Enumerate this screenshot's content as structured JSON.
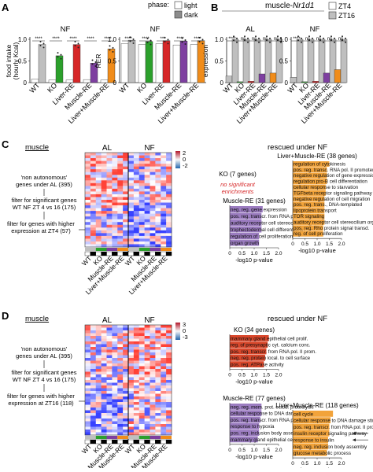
{
  "panels": {
    "A": {
      "letter": "A"
    },
    "B": {
      "letter": "B",
      "title_prefix": "muscle-",
      "title_gene": "Nr1d1"
    },
    "C": {
      "letter": "C"
    },
    "D": {
      "letter": "D"
    }
  },
  "phase_legend": {
    "title": "phase:",
    "light": "light",
    "dark": "dark"
  },
  "zt_legend": {
    "zt4": "ZT4",
    "zt16": "ZT16"
  },
  "groups": [
    "WT",
    "KO",
    "Liver-RE",
    "Muscle-RE",
    "Liver+Muscle-RE"
  ],
  "colors": {
    "WT": "#bfbfbf",
    "KO": "#2ca02c",
    "Liver-RE": "#d62728",
    "Muscle-RE": "#7e3fa0",
    "Liver+Muscle-RE": "#f08c1a",
    "dark_gray": "#8c8c8c",
    "heat_high": "#c0241f",
    "heat_low": "#2b6db4",
    "enrich_purple": "#9b7cc0",
    "enrich_red": "#d9472b",
    "enrich_orange": "#f2a33a",
    "note_red": "#d62728"
  },
  "chart_data": [
    {
      "type": "bar",
      "ylabel": "food intake\n(hourly Kcal)",
      "title": "NF",
      "ylim": [
        0,
        1.0
      ],
      "yticks": [
        "0",
        "0.5",
        "1.0"
      ],
      "categories": [
        "WT",
        "KO",
        "Liver-RE",
        "Muscle-RE",
        "Liver+Muscle-RE"
      ],
      "series": [
        {
          "name": "light",
          "values": [
            0.08,
            0.06,
            0.06,
            0.07,
            0.06
          ]
        },
        {
          "name": "dark",
          "values": [
            0.88,
            0.62,
            0.88,
            0.45,
            0.78
          ]
        }
      ],
      "sig": [
        "****",
        "****",
        "****",
        "****",
        "****"
      ]
    },
    {
      "type": "bar",
      "ylabel": "RER",
      "title": "NF",
      "ylim": [
        0,
        1.0
      ],
      "yticks": [
        "0",
        "0.5",
        "1.0"
      ],
      "categories": [
        "WT",
        "KO",
        "Liver-RE",
        "Muscle-RE",
        "Liver+Muscle-RE"
      ],
      "series": [
        {
          "name": "light",
          "values": [
            0.9,
            0.88,
            0.9,
            0.87,
            0.88
          ]
        },
        {
          "name": "dark",
          "values": [
            0.98,
            0.95,
            0.97,
            0.96,
            0.97
          ]
        }
      ],
      "sig": [
        "****",
        "****",
        "***",
        "****",
        "****"
      ]
    },
    {
      "type": "bar",
      "ylabel": "expression",
      "title": "AL",
      "ylim": [
        0,
        1.0
      ],
      "yticks": [
        "0",
        "0.5",
        "1.0"
      ],
      "categories": [
        "WT",
        "KO",
        "Liver-RE",
        "Muscle-RE",
        "Liver+Muscle-RE"
      ],
      "series": [
        {
          "name": "ZT4",
          "values": [
            0.15,
            0.02,
            0.03,
            0.2,
            0.22
          ]
        },
        {
          "name": "ZT16",
          "values": [
            1.0,
            1.0,
            1.0,
            1.0,
            1.0
          ]
        }
      ],
      "sig": [
        "****",
        "ns",
        "ns",
        "ns",
        "ns"
      ]
    },
    {
      "type": "bar",
      "title": "NF",
      "ylim": [
        0,
        1.0
      ],
      "yticks": [
        "0",
        "0.5",
        "1.0"
      ],
      "categories": [
        "WT",
        "KO",
        "Liver-RE",
        "Muscle-RE",
        "Liver+Muscle-RE"
      ],
      "series": [
        {
          "name": "ZT4",
          "values": [
            0.12,
            0.02,
            0.03,
            0.22,
            0.3
          ]
        },
        {
          "name": "ZT16",
          "values": [
            1.0,
            1.0,
            1.0,
            1.0,
            1.0
          ]
        }
      ],
      "sig": [
        "****",
        "ns",
        "ns",
        "ns",
        "ns"
      ]
    },
    {
      "type": "bar",
      "title": "KO (7 genes)",
      "xlabel": "-log10 p-value",
      "note": "no significant enrichments",
      "categories": [],
      "values": []
    },
    {
      "type": "bar",
      "title": "Muscle-RE (31 genes)",
      "xlabel": "-log10 p-value",
      "xlim": [
        0,
        2.0
      ],
      "xticks": [
        "0",
        "0.5",
        "1.0",
        "1.5",
        "2.0"
      ],
      "categories": [
        "neg. reg. gene expression",
        "pos. reg. transcr. from RNA pol II prom.",
        "auditory receptor cell stereocilium org.",
        "trophectodermal cell differentiation",
        "regulation of cell proliferation",
        "organ growth"
      ],
      "values": [
        1.35,
        1.3,
        1.3,
        1.3,
        1.2,
        1.2
      ]
    },
    {
      "type": "bar",
      "title": "Liver+Muscle-RE (38 genes)",
      "xlabel": "-log10 p-value",
      "xlim": [
        0,
        2.0
      ],
      "xticks": [
        "0",
        "0.5",
        "1.0",
        "1.5",
        "2.0"
      ],
      "categories": [
        "regulation of cytokinesis",
        "pos. reg. transc. RNA pol. II promoter",
        "negative regulation of gene expression",
        "regulation pro-B cell differentiation",
        "cellular response to starvation",
        "TGFbeta receptor signaling pathway",
        "negative regulation of cell migration",
        "pos. reg. trans., DNA-templated",
        "lipoprotein transport",
        "TOR signaling",
        "auditory receptor cell stereocilium org.",
        "pos. reg. Rho protein signal transd.",
        "reg. of cell proliferation"
      ],
      "values": [
        1.5,
        1.4,
        1.4,
        1.4,
        1.35,
        1.35,
        1.3,
        1.3,
        1.3,
        1.3,
        1.3,
        1.25,
        1.25
      ]
    },
    {
      "type": "bar",
      "title": "KO (34 genes)",
      "xlabel": "-log10 p-value",
      "xlim": [
        0,
        2.0
      ],
      "xticks": [
        "0",
        "0.5",
        "1.0",
        "1.5",
        "2.0"
      ],
      "categories": [
        "mammary gland epithelial cell prolif.",
        "reg. of presynaptic cyt. calcium conc.",
        "pos. reg. transcr. from RNA pol. II prom.",
        "neg. reg. protein local. to cell surface",
        "pos. reg. ATPase activity"
      ],
      "values": [
        1.6,
        1.55,
        1.5,
        1.45,
        1.4
      ]
    },
    {
      "type": "bar",
      "title": "Muscle-RE (77 genes)",
      "xlabel": "-log10 p-value",
      "xlim": [
        0,
        2.0
      ],
      "xticks": [
        "0",
        "0.5",
        "1.0",
        "1.5",
        "2.0"
      ],
      "categories": [
        "neg. reg. mem. prot. ectod. proteolysis",
        "cellular response to DNA damage stim.",
        "pos. reg. transcr. from RNA pol. II prom.",
        "response to hypoxia",
        "pos. reg. inclusion body assembly",
        "mammary gland epithelial cell prolifer."
      ],
      "values": [
        1.3,
        1.3,
        1.25,
        1.2,
        1.2,
        1.15
      ]
    },
    {
      "type": "bar",
      "title": "Liver+Muscle-RE (118 genes)",
      "xlabel": "-log10 p-value",
      "xlim": [
        0,
        2.0
      ],
      "xticks": [
        "0",
        "0.5",
        "1.0",
        "1.5",
        "2.0"
      ],
      "categories": [
        "cell cycle",
        "cellular response to DNA damage stim.",
        "pos. reg. transcr. from RNA pol. II prom.",
        "insulin receptor signaling pathway",
        "response to insulin",
        "neg. reg. inclusion body assembly",
        "glucose metabolic process"
      ],
      "values": [
        1.65,
        1.55,
        1.5,
        1.5,
        1.45,
        1.45,
        1.4
      ]
    }
  ],
  "panelC": {
    "section_label": "muscle",
    "col_al": "AL",
    "col_nf": "NF",
    "colorbar": [
      "2",
      "0",
      "-2"
    ],
    "flow": [
      "'non autonomous' genes under AL (395)",
      "filter for significant genes WT NF ZT 4 vs 16 (175)",
      "filter for genes with higher expression at ZT4 (57)"
    ],
    "rescued_title": "rescued under NF",
    "xlabel_groups": [
      "WT",
      "KO",
      "Muscle-RE",
      "Liver+Muscle-RE"
    ]
  },
  "panelD": {
    "section_label": "muscle",
    "col_al": "AL",
    "col_nf": "NF",
    "colorbar": [
      "3",
      "0",
      "-3"
    ],
    "flow": [
      "'non autonomous' genes under AL (395)",
      "filter for significant genes WT NF ZT 4 vs 16 (175)",
      "filter for genes with higher expression at ZT16 (118)"
    ],
    "rescued_title": "rescued under NF",
    "xlabel_groups": [
      "WT",
      "KO",
      "Muscle-RE",
      "Liver+Muscle-RE"
    ]
  }
}
